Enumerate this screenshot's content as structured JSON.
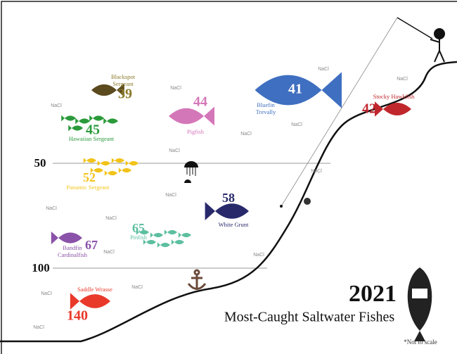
{
  "year": "2021",
  "title": "Most-Caught Saltwater Fishes",
  "note": "*Not to scale",
  "depth_markers": [
    "50",
    "100"
  ],
  "fishes": [
    {
      "number": "39",
      "name": [
        "Blackspot",
        "Sergeant"
      ],
      "color": "#8b7a2a"
    },
    {
      "number": "45",
      "name": [
        "Hawaiian Sergeant"
      ],
      "color": "#2a9a3a"
    },
    {
      "number": "44",
      "name": [
        "Pigfish"
      ],
      "color": "#d477b8"
    },
    {
      "number": "41",
      "name": [
        "Bluefin",
        "Trevally"
      ],
      "color": "#3f6fc0"
    },
    {
      "number": "42",
      "name": [
        "Stocky Hawkfish"
      ],
      "color": "#c0272d"
    },
    {
      "number": "52",
      "name": [
        "Panamic Sergeant"
      ],
      "color": "#f2c318"
    },
    {
      "number": "58",
      "name": [
        "White Grunt"
      ],
      "color": "#27296a"
    },
    {
      "number": "65",
      "name": [
        "Pinfish"
      ],
      "color": "#5dbfa0"
    },
    {
      "number": "67",
      "name": [
        "Bandfin",
        "Cardinalfish"
      ],
      "color": "#8a52a8"
    },
    {
      "number": "140",
      "name": [
        "Saddle Wrasse"
      ],
      "color": "#e8392a"
    }
  ],
  "salt_labels": [
    "NaCl",
    "NaCl",
    "NaCl",
    "NaCl",
    "NaCl",
    "NaCl",
    "NaCl",
    "NaCl",
    "NaCl",
    "NaCl",
    "NaCl",
    "NaCl",
    "NaCl",
    "NaCl",
    "NaCl",
    "NaCl"
  ]
}
